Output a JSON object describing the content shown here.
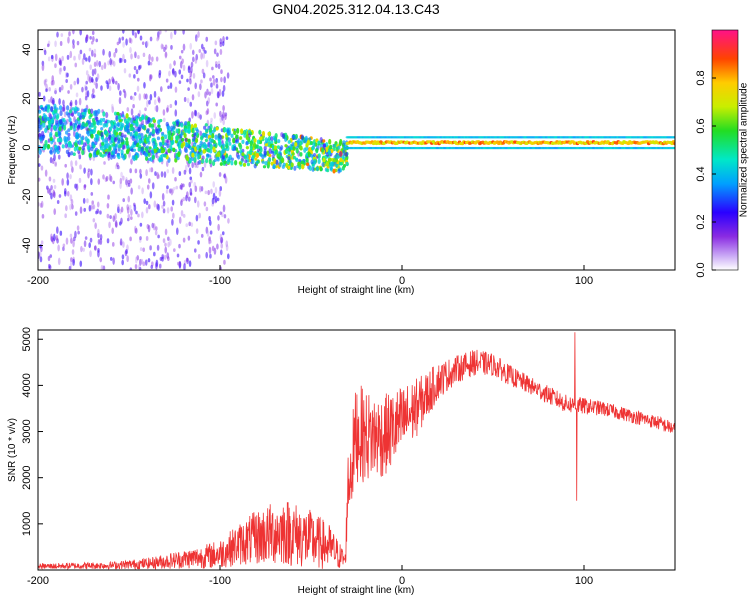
{
  "title": "GN04.2025.312.04.13.C43",
  "chart_data": [
    {
      "type": "heatmap",
      "xlabel": "Height of straight line (km)",
      "ylabel": "Frequency (Hz)",
      "xlim": [
        -200,
        150
      ],
      "ylim": [
        -50,
        48
      ],
      "xticks": [
        -200,
        -100,
        0,
        100
      ],
      "yticks": [
        -40,
        -20,
        0,
        20,
        40
      ],
      "colorbar": {
        "label": "Normalized spectral amplitude",
        "range": [
          0,
          1
        ],
        "ticks": [
          0.0,
          0.2,
          0.4,
          0.6,
          0.8
        ],
        "tick_labels": [
          "0.0",
          "0.2",
          "0.4",
          "0.6",
          "0.8"
        ]
      },
      "features": [
        {
          "kind": "diffuse-noise",
          "x_range": [
            -200,
            -95
          ],
          "freq_range": [
            -50,
            48
          ],
          "amplitude": 0.15
        },
        {
          "kind": "broad-band",
          "x_range": [
            -200,
            -30
          ],
          "center_freq": [
            8,
            -4
          ],
          "amplitude": 0.3
        },
        {
          "kind": "narrow-line",
          "x_range": [
            -30,
            150
          ],
          "center_freq": 2,
          "amplitude": 0.85
        }
      ]
    },
    {
      "type": "line",
      "xlabel": "Height of straight line (km)",
      "ylabel": "SNR (10 * v/v)",
      "xlim": [
        -200,
        150
      ],
      "ylim": [
        0,
        5200
      ],
      "xticks": [
        -200,
        -100,
        0,
        100
      ],
      "yticks": [
        1000,
        2000,
        3000,
        4000,
        5000
      ],
      "series": [
        {
          "name": "SNR",
          "color": "#ee3333",
          "envelope_x": [
            -200,
            -160,
            -140,
            -110,
            -100,
            -90,
            -80,
            -65,
            -50,
            -40,
            -31,
            -30,
            -25,
            -20,
            -10,
            0,
            10,
            20,
            30,
            40,
            50,
            60,
            70,
            80,
            90,
            100,
            110,
            120,
            130,
            140,
            150
          ],
          "envelope_value": [
            80,
            100,
            140,
            280,
            350,
            550,
            700,
            850,
            650,
            500,
            200,
            1700,
            3000,
            2900,
            2900,
            3200,
            3600,
            4100,
            4350,
            4500,
            4450,
            4200,
            4000,
            3800,
            3600,
            3550,
            3500,
            3400,
            3300,
            3200,
            3050
          ],
          "noise_amplitude": [
            60,
            80,
            120,
            250,
            320,
            450,
            600,
            750,
            650,
            500,
            180,
            800,
            1100,
            1000,
            900,
            800,
            600,
            400,
            300,
            280,
            250,
            220,
            200,
            200,
            200,
            180,
            160,
            150,
            150,
            150,
            150
          ],
          "spikes": [
            {
              "x": 95,
              "value": 5150
            },
            {
              "x": 96,
              "value": 1500
            }
          ]
        }
      ]
    }
  ]
}
